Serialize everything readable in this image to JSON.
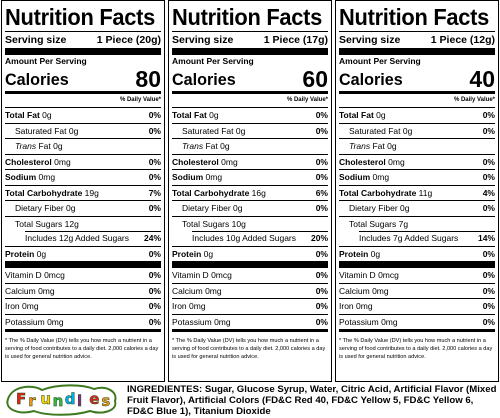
{
  "panels": [
    {
      "title": "Nutrition Facts",
      "serving_label": "Serving size",
      "serving_value": "1 Piece (20g)",
      "amount_label": "Amount Per Serving",
      "calories_label": "Calories",
      "calories_value": "80",
      "dv_header": "% Daily Value*",
      "total_fat": "0g",
      "total_fat_dv": "0%",
      "sat_fat": "0g",
      "sat_fat_dv": "0%",
      "trans_fat": "0g",
      "cholesterol": "0mg",
      "cholesterol_dv": "0%",
      "sodium": "0mg",
      "sodium_dv": "0%",
      "carb": "19g",
      "carb_dv": "7%",
      "fiber": "0g",
      "fiber_dv": "0%",
      "sugars": "12g",
      "added_sugars": "12g",
      "added_sugars_dv": "24%",
      "protein": "0g",
      "protein_dv": "0%",
      "vit_d": "0mcg",
      "vit_d_dv": "0%",
      "calcium": "0mg",
      "calcium_dv": "0%",
      "iron": "0mg",
      "iron_dv": "0%",
      "potassium": "0mg",
      "potassium_dv": "0%"
    },
    {
      "title": "Nutrition Facts",
      "serving_label": "Serving size",
      "serving_value": "1 Piece (17g)",
      "amount_label": "Amount Per Serving",
      "calories_label": "Calories",
      "calories_value": "60",
      "dv_header": "% Daily Value*",
      "total_fat": "0g",
      "total_fat_dv": "0%",
      "sat_fat": "0g",
      "sat_fat_dv": "0%",
      "trans_fat": "0g",
      "cholesterol": "0mg",
      "cholesterol_dv": "0%",
      "sodium": "0mg",
      "sodium_dv": "0%",
      "carb": "16g",
      "carb_dv": "6%",
      "fiber": "0g",
      "fiber_dv": "0%",
      "sugars": "10g",
      "added_sugars": "10g",
      "added_sugars_dv": "20%",
      "protein": "0g",
      "protein_dv": "0%",
      "vit_d": "0mcg",
      "vit_d_dv": "0%",
      "calcium": "0mg",
      "calcium_dv": "0%",
      "iron": "0mg",
      "iron_dv": "0%",
      "potassium": "0mg",
      "potassium_dv": "0%"
    },
    {
      "title": "Nutrition Facts",
      "serving_label": "Serving size",
      "serving_value": "1 Piece (12g)",
      "amount_label": "Amount Per Serving",
      "calories_label": "Calories",
      "calories_value": "40",
      "dv_header": "% Daily Value*",
      "total_fat": "0g",
      "total_fat_dv": "0%",
      "sat_fat": "0g",
      "sat_fat_dv": "0%",
      "trans_fat": "0g",
      "cholesterol": "0mg",
      "cholesterol_dv": "0%",
      "sodium": "0mg",
      "sodium_dv": "0%",
      "carb": "11g",
      "carb_dv": "4%",
      "fiber": "0g",
      "fiber_dv": "0%",
      "sugars": "7g",
      "added_sugars": "7g",
      "added_sugars_dv": "14%",
      "protein": "0g",
      "protein_dv": "0%",
      "vit_d": "0mcg",
      "vit_d_dv": "0%",
      "calcium": "0mg",
      "calcium_dv": "0%",
      "iron": "0mg",
      "iron_dv": "0%",
      "potassium": "0mg",
      "potassium_dv": "0%"
    }
  ],
  "labels": {
    "total_fat": "Total Fat",
    "sat_fat": "Saturated Fat",
    "trans_fat": "Trans",
    "trans_fat_suffix": " Fat",
    "cholesterol": "Cholesterol",
    "sodium": "Sodium",
    "carb": "Total Carbohydrate",
    "fiber": "Dietary Fiber",
    "sugars": "Total Sugars",
    "includes": "Includes",
    "added_sugars_suffix": "Added Sugars",
    "protein": "Protein",
    "vit_d": "Vitamin D",
    "calcium": "Calcium",
    "iron": "Iron",
    "potassium": "Potassium"
  },
  "footnote": "* The % Daily Value (DV) tells you how much a nutrient in a serving of food contributes to a daily diet. 2,000 calories a day is used for general nutrition advice.",
  "logo_text": "Frundles",
  "logo_colors": [
    "#e2231a",
    "#f7941d",
    "#ffd200",
    "#39b54a",
    "#00aeef",
    "#92278f"
  ],
  "ingredients": "INGREDIENTES: Sugar, Glucose Syrup, Water, Citric Acid, Artificial Flavor (Mixed Fruit Flavor), Artificial Colors (FD&C Red 40, FD&C Yellow 5, FD&C Yellow 6, FD&C Blue 1), Titanium Dioxide"
}
